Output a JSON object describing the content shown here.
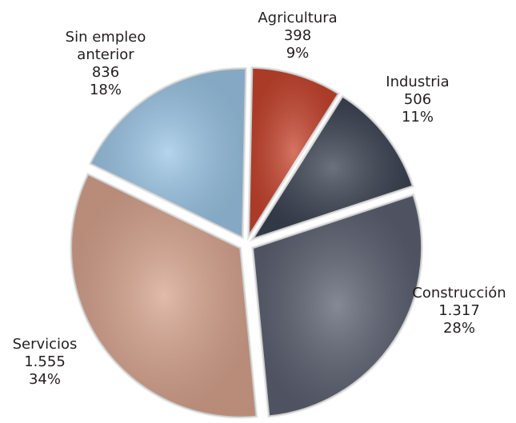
{
  "chart_data": {
    "type": "pie",
    "categories": [
      "Agricultura",
      "Industria",
      "Construcción",
      "Servicios",
      "Sin empleo anterior"
    ],
    "values": [
      398,
      506,
      1317,
      1555,
      836
    ],
    "value_labels": [
      "398",
      "506",
      "1.317",
      "1.555",
      "836"
    ],
    "percents": [
      9,
      11,
      28,
      34,
      18
    ],
    "percent_labels": [
      "9%",
      "11%",
      "28%",
      "34%",
      "18%"
    ],
    "colors": [
      "#c8452e",
      "#3b4352",
      "#5d6272",
      "#d8a48e",
      "#9cc6e6"
    ]
  }
}
